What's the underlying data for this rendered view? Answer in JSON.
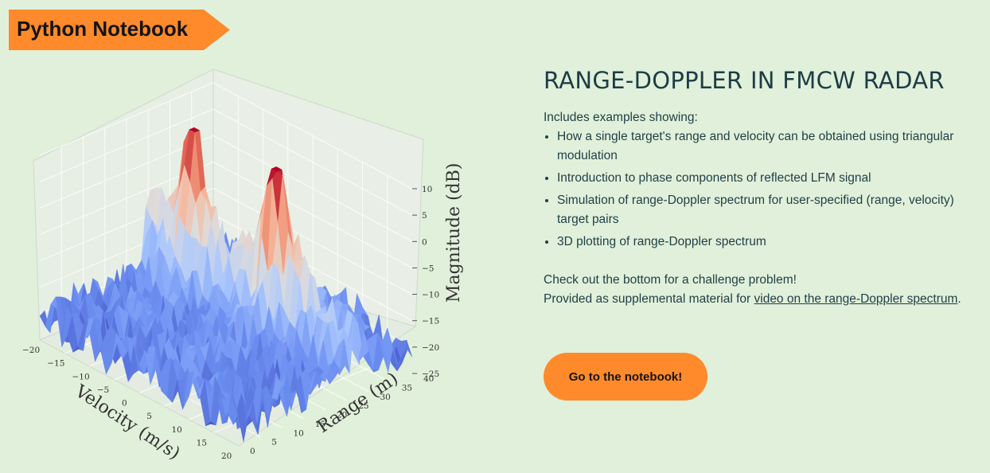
{
  "badge": {
    "label": "Python Notebook"
  },
  "plot": {
    "z_axis": {
      "label": "Magnitude (dB)",
      "ticks": [
        "10",
        "5",
        "0",
        "−5",
        "−10",
        "−15",
        "−20",
        "−25"
      ]
    },
    "velocity_axis": {
      "label": "Velocity (m/s)",
      "ticks": [
        "−20",
        "−15",
        "−10",
        "−5",
        "0",
        "5",
        "10",
        "15",
        "20"
      ]
    },
    "range_axis": {
      "label": "Range (m)",
      "ticks": [
        "0",
        "5",
        "10",
        "15",
        "20",
        "25",
        "30",
        "35",
        "40"
      ]
    },
    "colormap": [
      "#3b4cc0",
      "#6f92f3",
      "#aac7fd",
      "#dddcdc",
      "#f7b89c",
      "#e7745b",
      "#b40426"
    ]
  },
  "content": {
    "title": "RANGE-DOPPLER IN FMCW RADAR",
    "intro": "Includes examples showing:",
    "bullets": [
      "How a single target's range and velocity can be obtained using triangular modulation",
      "Introduction to phase components of reflected LFM signal",
      "Simulation of range-Doppler spectrum for user-specified (range, velocity) target pairs",
      "3D plotting of range-Doppler spectrum"
    ],
    "challenge": "Check out the bottom for a challenge problem!",
    "supplemental_prefix": "Provided as supplemental material for ",
    "supplemental_link": "video on the range-Doppler spectrum",
    "supplemental_suffix": "."
  },
  "cta": {
    "label": "Go to the notebook!"
  }
}
